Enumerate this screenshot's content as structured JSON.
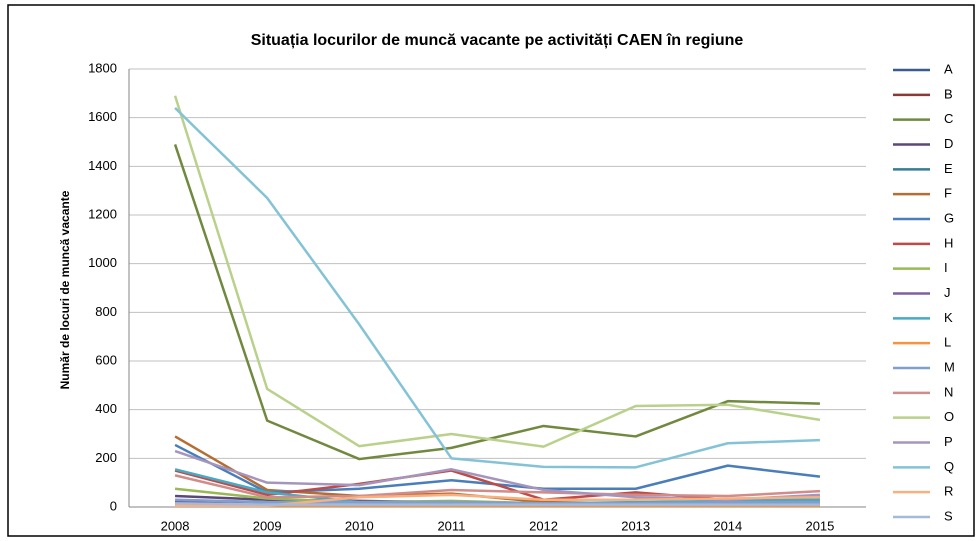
{
  "chart_data": {
    "type": "line",
    "title": "Situația locurilor de muncă vacante pe activități CAEN în regiune",
    "y_label": "Număr de locuri de muncă vacante",
    "categories": [
      "2008",
      "2009",
      "2010",
      "2011",
      "2012",
      "2013",
      "2014",
      "2015"
    ],
    "ylim": [
      0,
      1800
    ],
    "yticks": [
      0,
      200,
      400,
      600,
      800,
      1000,
      1200,
      1400,
      1600,
      1800
    ],
    "grid": true,
    "legend": "right",
    "series": [
      {
        "name": "A",
        "color": "#385d8a",
        "values": [
          20,
          10,
          10,
          10,
          10,
          10,
          10,
          10
        ]
      },
      {
        "name": "B",
        "color": "#8c3836",
        "values": [
          10,
          5,
          5,
          5,
          5,
          5,
          5,
          5
        ]
      },
      {
        "name": "C",
        "color": "#71893f",
        "values": [
          1490,
          355,
          197,
          243,
          333,
          290,
          435,
          425
        ]
      },
      {
        "name": "D",
        "color": "#5c4776",
        "values": [
          45,
          30,
          25,
          20,
          15,
          15,
          20,
          20
        ]
      },
      {
        "name": "E",
        "color": "#357d91",
        "values": [
          10,
          5,
          5,
          5,
          5,
          5,
          5,
          5
        ]
      },
      {
        "name": "F",
        "color": "#b66d31",
        "values": [
          290,
          70,
          45,
          55,
          20,
          15,
          25,
          40
        ]
      },
      {
        "name": "G",
        "color": "#4a7ebb",
        "values": [
          255,
          60,
          75,
          110,
          75,
          75,
          170,
          125
        ]
      },
      {
        "name": "H",
        "color": "#be4b48",
        "values": [
          150,
          50,
          95,
          150,
          30,
          60,
          30,
          45
        ]
      },
      {
        "name": "I",
        "color": "#98b954",
        "values": [
          75,
          35,
          20,
          25,
          15,
          15,
          20,
          20
        ]
      },
      {
        "name": "J",
        "color": "#7d60a0",
        "values": [
          20,
          10,
          10,
          10,
          10,
          10,
          10,
          10
        ]
      },
      {
        "name": "K",
        "color": "#46aac5",
        "values": [
          155,
          60,
          20,
          20,
          15,
          20,
          25,
          30
        ]
      },
      {
        "name": "L",
        "color": "#f69240",
        "values": [
          5,
          5,
          5,
          5,
          5,
          5,
          5,
          5
        ]
      },
      {
        "name": "M",
        "color": "#7f9fcf",
        "values": [
          30,
          20,
          20,
          20,
          15,
          15,
          20,
          20
        ]
      },
      {
        "name": "N",
        "color": "#d08c8a",
        "values": [
          130,
          40,
          45,
          70,
          60,
          50,
          45,
          65
        ]
      },
      {
        "name": "O",
        "color": "#b9d18a",
        "values": [
          1690,
          485,
          250,
          300,
          248,
          415,
          420,
          358
        ]
      },
      {
        "name": "P",
        "color": "#a595bd",
        "values": [
          230,
          100,
          90,
          155,
          70,
          40,
          30,
          50
        ]
      },
      {
        "name": "Q",
        "color": "#84c3d6",
        "values": [
          1640,
          1270,
          750,
          200,
          165,
          163,
          262,
          275
        ]
      },
      {
        "name": "R",
        "color": "#f9b07f",
        "values": [
          5,
          5,
          40,
          50,
          30,
          30,
          35,
          40
        ]
      },
      {
        "name": "S",
        "color": "#a6b9d8",
        "values": [
          15,
          10,
          10,
          10,
          10,
          10,
          10,
          10
        ]
      }
    ]
  }
}
